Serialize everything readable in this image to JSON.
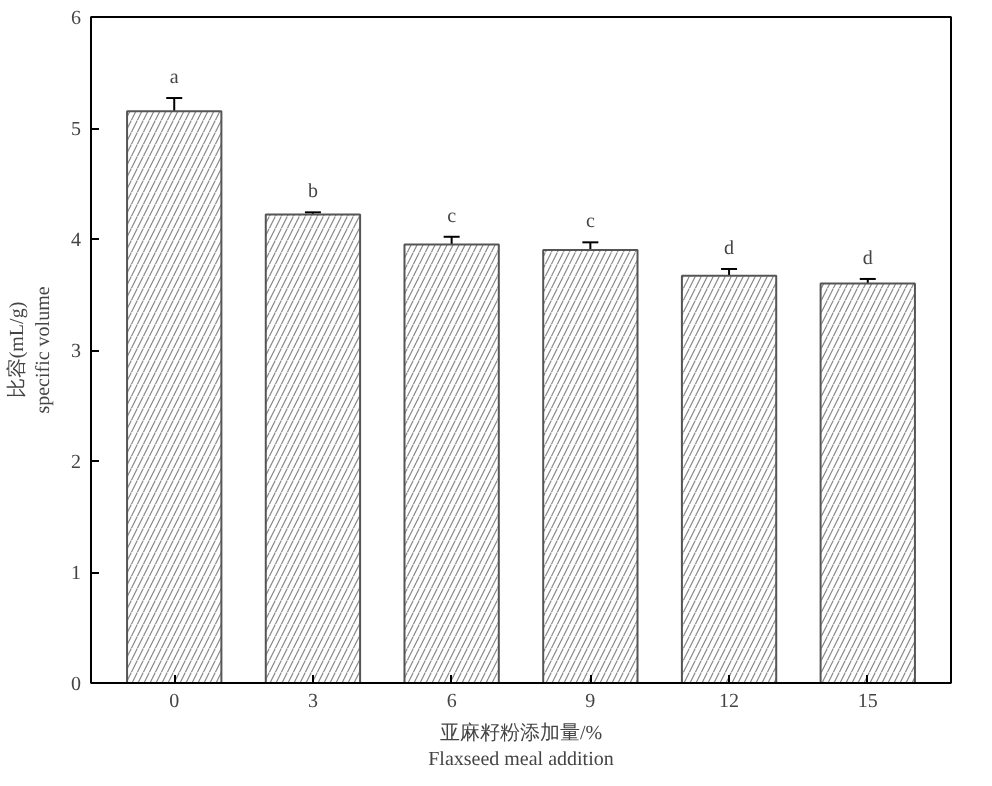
{
  "chart_data": {
    "type": "bar",
    "xlabel": "亚麻籽粉添加量/%\nFlaxseed meal addition",
    "ylabel": "比容(mL/g)\nspecific volume",
    "categories": [
      "0",
      "3",
      "6",
      "9",
      "12",
      "15"
    ],
    "values": [
      5.15,
      4.22,
      3.95,
      3.9,
      3.67,
      3.6
    ],
    "errors": [
      0.12,
      0.02,
      0.07,
      0.07,
      0.06,
      0.04
    ],
    "color": "#ffffff",
    "ylim": [
      0,
      6
    ],
    "yticks": [
      0,
      1,
      2,
      3,
      4,
      5,
      6
    ],
    "grid": false,
    "annotations": [
      {
        "text": "a",
        "x": "0",
        "y": 5.35
      },
      {
        "text": "b",
        "x": "3",
        "y": 4.32
      },
      {
        "text": "c",
        "x": "6",
        "y": 4.1
      },
      {
        "text": "c",
        "x": "9",
        "y": 4.05
      },
      {
        "text": "d",
        "x": "12",
        "y": 3.81
      },
      {
        "text": "d",
        "x": "15",
        "y": 3.72
      }
    ]
  }
}
